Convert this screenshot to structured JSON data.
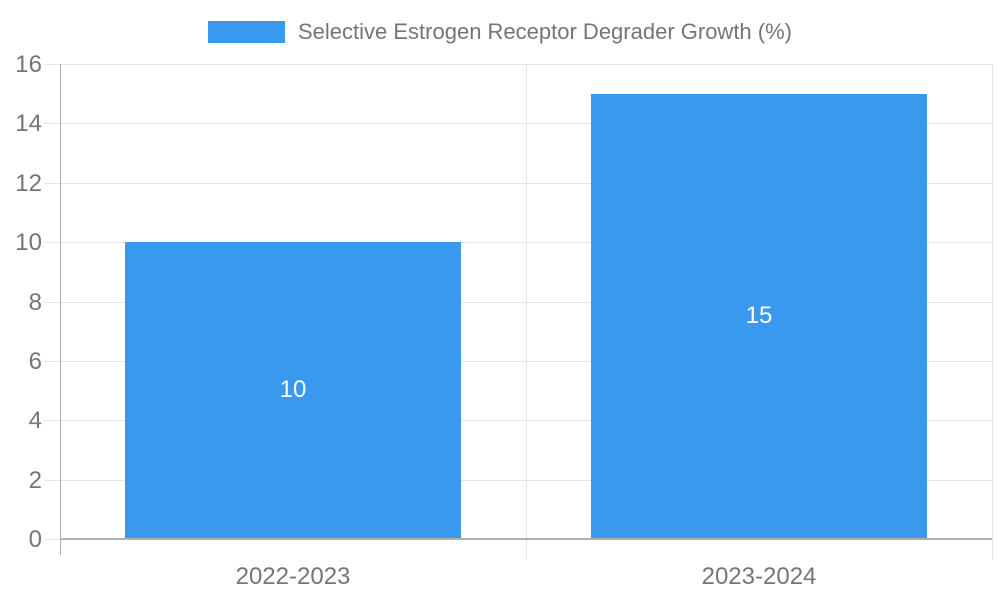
{
  "chart_data": {
    "type": "bar",
    "title": "",
    "categories": [
      "2022-2023",
      "2023-2024"
    ],
    "series": [
      {
        "name": "Selective Estrogen Receptor Degrader Growth (%)",
        "values": [
          10,
          15
        ]
      }
    ],
    "bar_labels": [
      "10",
      "15"
    ],
    "legend": {
      "label": "Selective Estrogen Receptor Degrader Growth (%)",
      "position": "top-center"
    },
    "xlabel": "",
    "ylabel": "",
    "ylim": [
      0,
      16
    ],
    "yticks": [
      0,
      2,
      4,
      6,
      8,
      10,
      12,
      14,
      16
    ],
    "grid": true,
    "colors": {
      "bar": "#3899ee",
      "axis_text": "#757575",
      "grid_line": "#e6e6e6",
      "axis_line": "#b0b0b0",
      "bar_label_text": "#ffffff",
      "background": "#ffffff"
    }
  }
}
